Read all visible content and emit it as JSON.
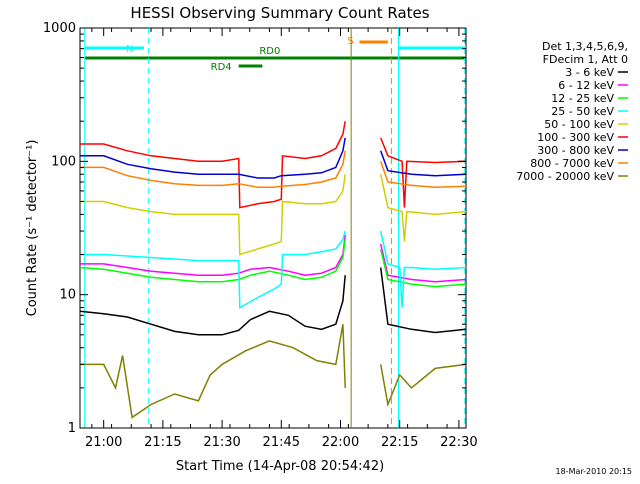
{
  "chart_data": {
    "type": "line",
    "title": "HESSI Observing Summary Count Rates",
    "xlabel": "Start Time (14-Apr-08 20:54:42)",
    "ylabel": "Count Rate (s⁻¹ detector⁻¹)",
    "footer": "18-Mar-2010 20:15",
    "yscale": "log",
    "ylim": [
      1,
      1000
    ],
    "y_ticks": [
      {
        "value": 1,
        "label": "1"
      },
      {
        "value": 10,
        "label": "10"
      },
      {
        "value": 100,
        "label": "100"
      },
      {
        "value": 1000,
        "label": "1000"
      }
    ],
    "xlim_minutes": [
      20.9,
      22.53
    ],
    "x_ticks": [
      {
        "value": 21.0,
        "label": "21:00"
      },
      {
        "value": 21.25,
        "label": "21:15"
      },
      {
        "value": 21.5,
        "label": "21:30"
      },
      {
        "value": 21.75,
        "label": "21:45"
      },
      {
        "value": 22.0,
        "label": "22:00"
      },
      {
        "value": 22.25,
        "label": "22:15"
      },
      {
        "value": 22.5,
        "label": "22:30"
      }
    ],
    "legend_header": [
      "Det 1,3,4,5,6,9,",
      "FDecim 1, Att 0"
    ],
    "legend_position": "right",
    "series": [
      {
        "name": "3 - 6 keV",
        "color": "#000000",
        "points": [
          [
            20.9,
            7.5
          ],
          [
            21.0,
            7.2
          ],
          [
            21.1,
            6.8
          ],
          [
            21.2,
            6.0
          ],
          [
            21.3,
            5.3
          ],
          [
            21.4,
            5.0
          ],
          [
            21.5,
            5.0
          ],
          [
            21.57,
            5.4
          ],
          [
            21.62,
            6.5
          ],
          [
            21.7,
            7.5
          ],
          [
            21.78,
            7.0
          ],
          [
            21.85,
            5.8
          ],
          [
            21.92,
            5.5
          ],
          [
            21.98,
            6.0
          ],
          [
            22.01,
            9.0
          ],
          [
            22.02,
            14.0
          ],
          [
            22.03,
            null
          ],
          [
            22.17,
            null
          ],
          [
            22.17,
            16.0
          ],
          [
            22.2,
            6.0
          ],
          [
            22.3,
            5.5
          ],
          [
            22.4,
            5.2
          ],
          [
            22.53,
            5.5
          ]
        ]
      },
      {
        "name": "6 - 12 keV",
        "color": "#ff00ff",
        "points": [
          [
            20.9,
            17.0
          ],
          [
            21.0,
            17.0
          ],
          [
            21.1,
            16.0
          ],
          [
            21.2,
            15.0
          ],
          [
            21.3,
            14.5
          ],
          [
            21.4,
            14.0
          ],
          [
            21.5,
            14.0
          ],
          [
            21.57,
            14.5
          ],
          [
            21.62,
            15.5
          ],
          [
            21.7,
            16.0
          ],
          [
            21.78,
            15.0
          ],
          [
            21.85,
            14.0
          ],
          [
            21.92,
            14.5
          ],
          [
            21.98,
            16.0
          ],
          [
            22.01,
            20.0
          ],
          [
            22.02,
            28.0
          ],
          [
            22.03,
            null
          ],
          [
            22.17,
            null
          ],
          [
            22.17,
            24.0
          ],
          [
            22.2,
            14.0
          ],
          [
            22.3,
            13.0
          ],
          [
            22.4,
            12.5
          ],
          [
            22.53,
            13.0
          ]
        ]
      },
      {
        "name": "12 - 25 keV",
        "color": "#00ff00",
        "points": [
          [
            20.9,
            16.0
          ],
          [
            21.0,
            15.5
          ],
          [
            21.1,
            14.5
          ],
          [
            21.2,
            13.5
          ],
          [
            21.3,
            13.0
          ],
          [
            21.4,
            12.5
          ],
          [
            21.5,
            12.5
          ],
          [
            21.57,
            13.0
          ],
          [
            21.62,
            14.0
          ],
          [
            21.7,
            15.0
          ],
          [
            21.78,
            14.0
          ],
          [
            21.85,
            13.0
          ],
          [
            21.92,
            13.5
          ],
          [
            21.98,
            15.0
          ],
          [
            22.01,
            19.0
          ],
          [
            22.02,
            26.0
          ],
          [
            22.03,
            null
          ],
          [
            22.17,
            null
          ],
          [
            22.17,
            22.0
          ],
          [
            22.2,
            13.0
          ],
          [
            22.3,
            12.0
          ],
          [
            22.4,
            11.5
          ],
          [
            22.53,
            12.0
          ]
        ]
      },
      {
        "name": "25 - 50 keV",
        "color": "#00ffff",
        "points": [
          [
            20.9,
            20.0
          ],
          [
            21.0,
            20.0
          ],
          [
            21.1,
            19.5
          ],
          [
            21.2,
            19.0
          ],
          [
            21.3,
            18.5
          ],
          [
            21.4,
            18.0
          ],
          [
            21.5,
            18.0
          ],
          [
            21.57,
            18.0
          ],
          [
            21.575,
            8.0
          ],
          [
            21.65,
            9.5
          ],
          [
            21.72,
            11.0
          ],
          [
            21.75,
            12.0
          ],
          [
            21.755,
            20.0
          ],
          [
            21.85,
            20.0
          ],
          [
            21.92,
            21.0
          ],
          [
            21.98,
            22.0
          ],
          [
            22.01,
            26.0
          ],
          [
            22.02,
            30.0
          ],
          [
            22.03,
            null
          ],
          [
            22.17,
            null
          ],
          [
            22.17,
            30.0
          ],
          [
            22.2,
            17.0
          ],
          [
            22.25,
            16.0
          ],
          [
            22.26,
            8.0
          ],
          [
            22.27,
            16.0
          ],
          [
            22.3,
            16.0
          ],
          [
            22.4,
            15.5
          ],
          [
            22.53,
            16.0
          ]
        ]
      },
      {
        "name": "50 - 100 keV",
        "color": "#d0d000",
        "points": [
          [
            20.9,
            50.0
          ],
          [
            21.0,
            50.0
          ],
          [
            21.1,
            45.0
          ],
          [
            21.2,
            42.0
          ],
          [
            21.3,
            40.0
          ],
          [
            21.4,
            40.0
          ],
          [
            21.5,
            40.0
          ],
          [
            21.57,
            40.0
          ],
          [
            21.575,
            20.0
          ],
          [
            21.65,
            22.0
          ],
          [
            21.72,
            24.0
          ],
          [
            21.75,
            25.0
          ],
          [
            21.755,
            50.0
          ],
          [
            21.85,
            48.0
          ],
          [
            21.92,
            48.0
          ],
          [
            21.98,
            50.0
          ],
          [
            22.01,
            60.0
          ],
          [
            22.02,
            80.0
          ],
          [
            22.03,
            null
          ],
          [
            22.17,
            null
          ],
          [
            22.17,
            80.0
          ],
          [
            22.2,
            45.0
          ],
          [
            22.26,
            42.0
          ],
          [
            22.27,
            25.0
          ],
          [
            22.28,
            42.0
          ],
          [
            22.4,
            40.0
          ],
          [
            22.53,
            42.0
          ]
        ]
      },
      {
        "name": "100 - 300 keV",
        "color": "#ff0000",
        "points": [
          [
            20.9,
            135.0
          ],
          [
            21.0,
            135.0
          ],
          [
            21.1,
            120.0
          ],
          [
            21.2,
            110.0
          ],
          [
            21.3,
            105.0
          ],
          [
            21.4,
            100.0
          ],
          [
            21.5,
            100.0
          ],
          [
            21.57,
            105.0
          ],
          [
            21.575,
            45.0
          ],
          [
            21.65,
            48.0
          ],
          [
            21.72,
            50.0
          ],
          [
            21.75,
            52.0
          ],
          [
            21.755,
            110.0
          ],
          [
            21.85,
            105.0
          ],
          [
            21.92,
            110.0
          ],
          [
            21.98,
            125.0
          ],
          [
            22.01,
            160.0
          ],
          [
            22.02,
            200.0
          ],
          [
            22.03,
            null
          ],
          [
            22.17,
            null
          ],
          [
            22.17,
            150.0
          ],
          [
            22.2,
            110.0
          ],
          [
            22.26,
            100.0
          ],
          [
            22.27,
            45.0
          ],
          [
            22.28,
            100.0
          ],
          [
            22.4,
            98.0
          ],
          [
            22.53,
            100.0
          ]
        ]
      },
      {
        "name": "300 - 800 keV",
        "color": "#0000d0",
        "points": [
          [
            20.9,
            110.0
          ],
          [
            21.0,
            110.0
          ],
          [
            21.1,
            95.0
          ],
          [
            21.2,
            88.0
          ],
          [
            21.3,
            83.0
          ],
          [
            21.4,
            80.0
          ],
          [
            21.5,
            80.0
          ],
          [
            21.57,
            80.0
          ],
          [
            21.65,
            75.0
          ],
          [
            21.72,
            75.0
          ],
          [
            21.75,
            78.0
          ],
          [
            21.85,
            80.0
          ],
          [
            21.92,
            82.0
          ],
          [
            21.98,
            90.0
          ],
          [
            22.01,
            120.0
          ],
          [
            22.02,
            150.0
          ],
          [
            22.03,
            null
          ],
          [
            22.17,
            null
          ],
          [
            22.17,
            120.0
          ],
          [
            22.2,
            85.0
          ],
          [
            22.3,
            80.0
          ],
          [
            22.4,
            78.0
          ],
          [
            22.53,
            80.0
          ]
        ]
      },
      {
        "name": "800 - 7000 keV",
        "color": "#ff8000",
        "points": [
          [
            20.9,
            90.0
          ],
          [
            21.0,
            90.0
          ],
          [
            21.1,
            78.0
          ],
          [
            21.2,
            72.0
          ],
          [
            21.3,
            68.0
          ],
          [
            21.4,
            66.0
          ],
          [
            21.5,
            66.0
          ],
          [
            21.57,
            68.0
          ],
          [
            21.65,
            64.0
          ],
          [
            21.72,
            64.0
          ],
          [
            21.75,
            65.0
          ],
          [
            21.85,
            67.0
          ],
          [
            21.92,
            70.0
          ],
          [
            21.98,
            75.0
          ],
          [
            22.01,
            95.0
          ],
          [
            22.02,
            120.0
          ],
          [
            22.03,
            null
          ],
          [
            22.17,
            null
          ],
          [
            22.17,
            100.0
          ],
          [
            22.2,
            70.0
          ],
          [
            22.3,
            66.0
          ],
          [
            22.4,
            64.0
          ],
          [
            22.53,
            65.0
          ]
        ]
      },
      {
        "name": "7000 - 20000 keV",
        "color": "#808000",
        "points": [
          [
            20.9,
            3.0
          ],
          [
            21.0,
            3.0
          ],
          [
            21.05,
            2.0
          ],
          [
            21.08,
            3.5
          ],
          [
            21.12,
            1.2
          ],
          [
            21.2,
            1.5
          ],
          [
            21.3,
            1.8
          ],
          [
            21.4,
            1.6
          ],
          [
            21.45,
            2.5
          ],
          [
            21.5,
            3.0
          ],
          [
            21.6,
            3.8
          ],
          [
            21.7,
            4.5
          ],
          [
            21.8,
            4.0
          ],
          [
            21.9,
            3.2
          ],
          [
            21.98,
            3.0
          ],
          [
            22.01,
            6.0
          ],
          [
            22.02,
            2.0
          ],
          [
            22.03,
            null
          ],
          [
            22.17,
            null
          ],
          [
            22.17,
            3.0
          ],
          [
            22.2,
            1.5
          ],
          [
            22.25,
            2.5
          ],
          [
            22.3,
            2.0
          ],
          [
            22.4,
            2.8
          ],
          [
            22.53,
            3.0
          ]
        ]
      }
    ],
    "vertical_lines": [
      {
        "x": 20.92,
        "color": "#00ffff",
        "style": "solid"
      },
      {
        "x": 21.19,
        "color": "#00ffff",
        "style": "dashed"
      },
      {
        "x": 22.045,
        "color": "#808000",
        "style": "solid"
      },
      {
        "x": 22.215,
        "color": "#ff8000",
        "style": "dashed"
      },
      {
        "x": 22.245,
        "color": "#00ffff",
        "style": "solid"
      },
      {
        "x": 22.525,
        "color": "#00ffff",
        "style": "dashed"
      }
    ],
    "state_bars": [
      {
        "label": "N",
        "color": "#00ffff",
        "segments": [
          [
            20.92,
            21.17
          ],
          [
            22.245,
            22.53
          ]
        ],
        "level": 1
      },
      {
        "label": "S",
        "color": "#ff8000",
        "segments": [
          [
            22.08,
            22.2
          ]
        ],
        "level": 0
      },
      {
        "label": "RD0",
        "color": "#008000",
        "segments": [
          [
            20.92,
            22.53
          ]
        ],
        "level": 2
      },
      {
        "label": "RD4",
        "color": "#008000",
        "segments": [
          [
            21.57,
            21.67
          ]
        ],
        "level": 3
      }
    ]
  }
}
